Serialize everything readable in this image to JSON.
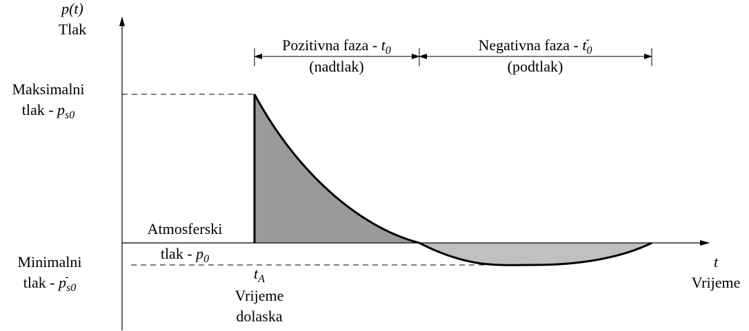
{
  "labels": {
    "y_axis": {
      "symbol": "p(t)",
      "name": "Tlak"
    },
    "max_pressure": {
      "line1": "Maksimalni",
      "line2": "tlak - ",
      "symbol": "p",
      "subscript": "s0"
    },
    "atmospheric": {
      "line1": "Atmosferski",
      "line2": "tlak - ",
      "symbol": "p",
      "subscript": "0"
    },
    "min_pressure": {
      "line1": "Minimalni",
      "line2": "tlak - ",
      "symbol": "p",
      "subscript": "s0",
      "superscript": "-"
    },
    "arrival": {
      "symbol": "t",
      "subscript": "A",
      "line1": "Vrijeme",
      "line2": "dolaska"
    },
    "x_axis": {
      "symbol": "t",
      "name": "Vrijeme"
    },
    "positive_phase": {
      "line1": "Pozitivna faza - ",
      "symbol": "t",
      "subscript": "0",
      "line2": "(nadtlak)"
    },
    "negative_phase": {
      "line1": "Negativna faza - ",
      "symbol": "t",
      "subscript": "0",
      "superscript": "-",
      "line2": "(podtlak)"
    }
  }
}
